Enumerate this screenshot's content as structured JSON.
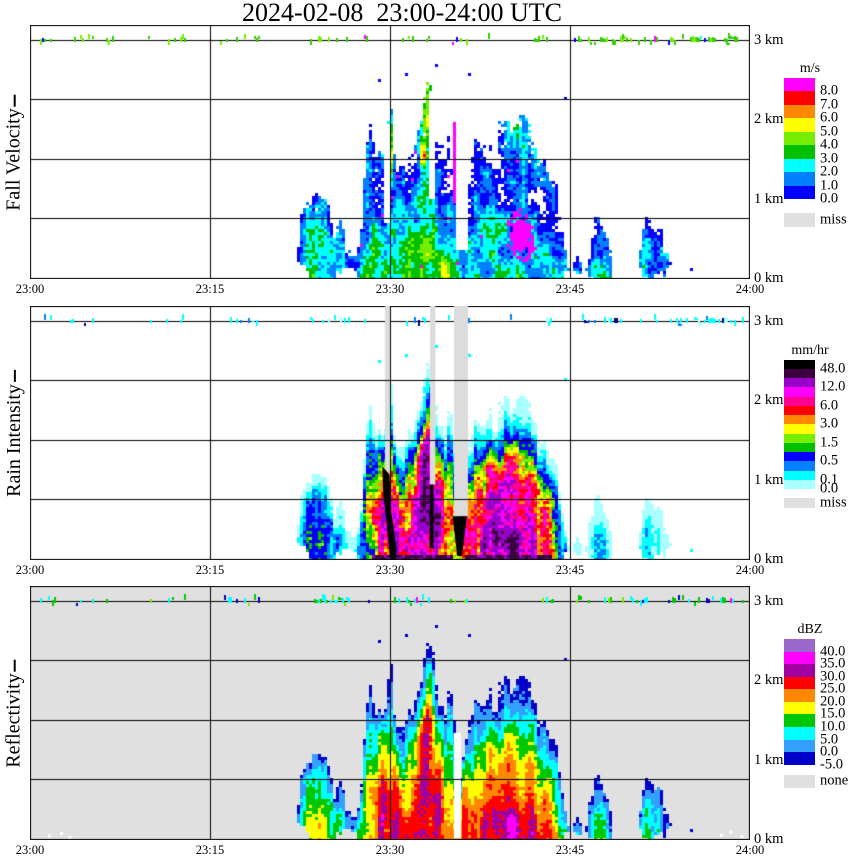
{
  "title": "2024-02-08  23:00-24:00 UTC",
  "chart_data": {
    "type": "heatmap",
    "title": "2024-02-08  23:00-24:00 UTC",
    "x_axis": {
      "tick_labels": [
        "23:00",
        "23:15",
        "23:30",
        "23:45",
        "24:00"
      ],
      "tick_minutes": [
        0,
        15,
        30,
        45,
        60
      ],
      "range_minutes": [
        0,
        60
      ]
    },
    "y_axis": {
      "tick_labels": [
        "3 km",
        "2 km",
        "1 km",
        "0 km"
      ],
      "tick_km": [
        3,
        2,
        1,
        0
      ],
      "range_km": [
        0,
        3.2
      ],
      "gridline_km": [
        3.0,
        2.25,
        1.5,
        0.75
      ]
    },
    "panels": [
      {
        "id": "fall-velocity",
        "ylabel": "Fall Velocity",
        "ylabel_suffix": "|",
        "background": "#FFFFFF",
        "legend": {
          "title": "m/s",
          "entries": [
            {
              "label": "8.0",
              "color": "#FF00FF"
            },
            {
              "label": "7.0",
              "color": "#FF0000"
            },
            {
              "label": "6.0",
              "color": "#FF8800"
            },
            {
              "label": "5.0",
              "color": "#FFFF00"
            },
            {
              "label": "4.0",
              "color": "#77EE00"
            },
            {
              "label": "3.0",
              "color": "#00C000"
            },
            {
              "label": "2.0",
              "color": "#00FFFF"
            },
            {
              "label": "1.0",
              "color": "#0080FF"
            },
            {
              "label": "0.0",
              "color": "#0000FF"
            }
          ],
          "extra": {
            "label": "miss",
            "color": "#E0E0E0"
          }
        },
        "bins": [
          0,
          1,
          2,
          3,
          4,
          5,
          6,
          7,
          8
        ]
      },
      {
        "id": "rain-intensity",
        "ylabel": "Rain Intensity",
        "ylabel_suffix": "|",
        "background": "#FFFFFF",
        "legend": {
          "title": "mm/hr",
          "entries": [
            {
              "label": "48.0",
              "color": "#000000"
            },
            {
              "label": "",
              "color": "#3C0040"
            },
            {
              "label": "12.0",
              "color": "#9900CC"
            },
            {
              "label": "",
              "color": "#FF00FF"
            },
            {
              "label": "6.0",
              "color": "#FF0090"
            },
            {
              "label": "",
              "color": "#FF0000"
            },
            {
              "label": "3.0",
              "color": "#FF8800"
            },
            {
              "label": "",
              "color": "#FFFF00"
            },
            {
              "label": "1.5",
              "color": "#77EE00"
            },
            {
              "label": "",
              "color": "#00C000"
            },
            {
              "label": "0.5",
              "color": "#0000FF"
            },
            {
              "label": "",
              "color": "#0080FF"
            },
            {
              "label": "0.1",
              "color": "#00FFFF"
            },
            {
              "label": "0.0",
              "color": "#A8FFFF"
            }
          ],
          "extra": {
            "label": "miss",
            "color": "#E0E0E0"
          }
        },
        "bins": [
          0,
          0.1,
          0.25,
          0.5,
          1.0,
          1.5,
          2.25,
          3.0,
          4.5,
          6.0,
          9.0,
          12.0,
          24.0,
          48.0
        ]
      },
      {
        "id": "reflectivity",
        "ylabel": "Reflectivity",
        "ylabel_suffix": "|",
        "background": "#E0E0E0",
        "legend": {
          "title": "dBZ",
          "entries": [
            {
              "label": "40.0",
              "color": "#9966CC"
            },
            {
              "label": "35.0",
              "color": "#FF00FF"
            },
            {
              "label": "30.0",
              "color": "#A000A0"
            },
            {
              "label": "25.0",
              "color": "#FF0000"
            },
            {
              "label": "20.0",
              "color": "#FF8800"
            },
            {
              "label": "15.0",
              "color": "#FFFF00"
            },
            {
              "label": "10.0",
              "color": "#00C800"
            },
            {
              "label": "5.0",
              "color": "#00FFFF"
            },
            {
              "label": "0.0",
              "color": "#33A0FF"
            },
            {
              "label": "-5.0",
              "color": "#0000C8"
            }
          ],
          "extra": {
            "label": "none",
            "color": "#E0E0E0"
          }
        },
        "bins": [
          -5,
          0,
          5,
          10,
          15,
          20,
          25,
          30,
          35,
          40
        ]
      }
    ],
    "echo": {
      "top_km": [
        [
          21.3,
          0.0
        ],
        [
          21.9,
          0.15
        ],
        [
          22.3,
          0.5
        ],
        [
          22.7,
          0.9
        ],
        [
          23.3,
          1.08
        ],
        [
          24.0,
          1.15
        ],
        [
          24.5,
          1.1
        ],
        [
          24.9,
          0.9
        ],
        [
          25.3,
          0.62
        ],
        [
          25.8,
          0.8
        ],
        [
          26.3,
          0.5
        ],
        [
          26.8,
          0.3
        ],
        [
          27.1,
          0.25
        ],
        [
          27.4,
          0.4
        ],
        [
          27.9,
          1.35
        ],
        [
          28.2,
          1.95
        ],
        [
          28.6,
          2.05
        ],
        [
          29.0,
          1.8
        ],
        [
          29.4,
          1.65
        ],
        [
          29.8,
          1.9
        ],
        [
          30.1,
          2.1
        ],
        [
          30.4,
          1.55
        ],
        [
          30.7,
          1.35
        ],
        [
          31.0,
          1.5
        ],
        [
          31.3,
          1.4
        ],
        [
          31.8,
          1.85
        ],
        [
          32.3,
          2.0
        ],
        [
          32.6,
          2.25
        ],
        [
          33.0,
          2.45
        ],
        [
          33.3,
          2.5
        ],
        [
          33.6,
          2.3
        ],
        [
          33.9,
          1.95
        ],
        [
          34.3,
          2.1
        ],
        [
          34.6,
          1.75
        ],
        [
          35.0,
          1.9
        ],
        [
          35.3,
          1.55
        ],
        [
          35.6,
          1.1
        ],
        [
          35.9,
          0.8
        ],
        [
          36.2,
          1.2
        ],
        [
          36.8,
          1.75
        ],
        [
          37.2,
          2.05
        ],
        [
          37.6,
          1.7
        ],
        [
          38.3,
          1.75
        ],
        [
          39.2,
          1.85
        ],
        [
          39.6,
          2.0
        ],
        [
          40.2,
          2.15
        ],
        [
          40.9,
          2.1
        ],
        [
          41.5,
          1.95
        ],
        [
          41.9,
          1.7
        ],
        [
          42.5,
          1.62
        ],
        [
          43.2,
          1.58
        ],
        [
          43.7,
          1.3
        ],
        [
          44.1,
          0.9
        ],
        [
          44.5,
          0.5
        ],
        [
          44.8,
          0.3
        ],
        [
          45.1,
          0.05
        ],
        [
          45.3,
          0.2
        ],
        [
          45.7,
          0.3
        ],
        [
          46.0,
          0.15
        ],
        [
          46.3,
          0.05
        ],
        [
          46.5,
          0.45
        ],
        [
          46.9,
          0.75
        ],
        [
          47.3,
          0.95
        ],
        [
          47.7,
          0.8
        ],
        [
          48.1,
          0.55
        ],
        [
          48.6,
          0.35
        ],
        [
          48.8,
          0.0
        ],
        [
          50.6,
          0.0
        ],
        [
          50.9,
          0.55
        ],
        [
          51.3,
          0.95
        ],
        [
          51.7,
          0.8
        ],
        [
          52.3,
          0.7
        ],
        [
          52.8,
          0.55
        ],
        [
          53.3,
          0.25
        ],
        [
          53.6,
          0.0
        ]
      ],
      "bottom_km": [
        [
          21.3,
          0.3
        ],
        [
          22.6,
          0.25
        ],
        [
          23.3,
          0.0
        ],
        [
          25.4,
          0.0
        ],
        [
          25.9,
          0.12
        ],
        [
          26.8,
          0.15
        ],
        [
          27.4,
          0.0
        ],
        [
          44.4,
          0.0
        ],
        [
          44.8,
          0.15
        ],
        [
          46.4,
          0.1
        ],
        [
          47.0,
          0.0
        ],
        [
          48.3,
          0.0
        ],
        [
          48.6,
          0.2
        ],
        [
          50.8,
          0.1
        ],
        [
          51.2,
          0.0
        ],
        [
          52.9,
          0.05
        ],
        [
          53.4,
          0.15
        ]
      ],
      "strength": [
        [
          0,
          0
        ],
        [
          21.3,
          0
        ],
        [
          21.9,
          0.55
        ],
        [
          23.0,
          0.95
        ],
        [
          24.5,
          1.0
        ],
        [
          25.4,
          0.8
        ],
        [
          26.6,
          0.6
        ],
        [
          27.4,
          0.75
        ],
        [
          28.0,
          1.2
        ],
        [
          29.0,
          1.3
        ],
        [
          30.0,
          1.35
        ],
        [
          31.0,
          1.3
        ],
        [
          32.0,
          1.45
        ],
        [
          33.0,
          1.5
        ],
        [
          34.0,
          1.45
        ],
        [
          35.0,
          1.35
        ],
        [
          35.8,
          1.1
        ],
        [
          36.4,
          1.3
        ],
        [
          37.5,
          1.45
        ],
        [
          38.5,
          1.5
        ],
        [
          42.0,
          1.5
        ],
        [
          43.0,
          1.35
        ],
        [
          44.0,
          1.1
        ],
        [
          44.8,
          0.7
        ],
        [
          45.5,
          0.3
        ],
        [
          46.4,
          0.55
        ],
        [
          47.3,
          0.75
        ],
        [
          48.2,
          0.6
        ],
        [
          48.9,
          0.4
        ],
        [
          50.7,
          0.5
        ],
        [
          51.5,
          0.75
        ],
        [
          52.4,
          0.6
        ],
        [
          53.3,
          0.3
        ],
        [
          54.0,
          0
        ],
        [
          60,
          0
        ]
      ],
      "v_strength": [
        [
          0,
          0.9
        ],
        [
          21.9,
          0.9
        ],
        [
          24.0,
          1.15
        ],
        [
          27.5,
          1.0
        ],
        [
          28.5,
          1.1
        ],
        [
          33.0,
          1.15
        ],
        [
          38.0,
          1.0
        ],
        [
          44.0,
          0.95
        ],
        [
          47.0,
          0.8
        ],
        [
          52.0,
          0.8
        ],
        [
          60,
          0.8
        ]
      ],
      "z_cores": [
        [
          24.2,
          0.45,
          0.9,
          0.45,
          4.5
        ],
        [
          29.3,
          0.5,
          0.7,
          0.5,
          7
        ],
        [
          29.35,
          0.7,
          0.22,
          0.6,
          9
        ],
        [
          30.55,
          0.6,
          0.25,
          0.5,
          8
        ],
        [
          32.5,
          0.9,
          0.8,
          0.65,
          7
        ],
        [
          33.2,
          1.85,
          0.3,
          0.5,
          12
        ],
        [
          33.0,
          1.3,
          0.45,
          0.45,
          7
        ],
        [
          34.1,
          0.6,
          0.22,
          0.55,
          10
        ],
        [
          36.15,
          0.8,
          0.22,
          0.85,
          11
        ],
        [
          38.3,
          0.7,
          0.6,
          0.6,
          5.5
        ],
        [
          40.0,
          0.55,
          0.4,
          0.6,
          10.5
        ],
        [
          41.8,
          0.8,
          0.35,
          0.7,
          10
        ],
        [
          43.0,
          0.4,
          0.5,
          0.4,
          5
        ],
        [
          47.3,
          0.35,
          0.6,
          0.3,
          3.5
        ],
        [
          51.6,
          0.4,
          0.5,
          0.35,
          4
        ]
      ],
      "v_cores": [
        [
          33.05,
          2.2,
          0.45,
          0.35,
          3.2
        ],
        [
          33.1,
          1.2,
          0.3,
          1.2,
          1.6
        ],
        [
          32.75,
          1.55,
          0.18,
          0.12,
          4.5
        ],
        [
          30.05,
          1.75,
          0.25,
          0.45,
          2.2
        ],
        [
          30.0,
          1.5,
          0.15,
          0.15,
          3.5
        ],
        [
          40.3,
          1.95,
          0.8,
          0.3,
          1.7
        ],
        [
          41.3,
          1.6,
          0.5,
          0.3,
          1.2
        ],
        [
          24.2,
          0.5,
          0.8,
          0.4,
          1.2
        ],
        [
          34.7,
          0.15,
          0.45,
          0.15,
          2.0
        ],
        [
          43.0,
          1.85,
          0.7,
          0.35,
          1.5
        ],
        [
          31.5,
          0.35,
          3.0,
          0.45,
          1.1
        ],
        [
          38.5,
          0.5,
          1.5,
          0.4,
          0.8
        ],
        [
          45.0,
          0.3,
          1.0,
          0.3,
          0.5
        ]
      ],
      "v_magenta_patch": [
        40.9,
        0.55,
        1.05,
        0.3
      ],
      "stray_dots_t_km": [
        [
          28.9,
          2.52
        ],
        [
          31.2,
          2.6
        ],
        [
          33.7,
          2.72
        ],
        [
          36.5,
          2.6
        ],
        [
          44.6,
          2.3
        ],
        [
          54.9,
          0.14
        ]
      ],
      "top_line_dot_clusters": [
        [
          0.8,
          2.2,
          0.5
        ],
        [
          3.3,
          5.3,
          0.55
        ],
        [
          6.3,
          7.0,
          0.5
        ],
        [
          9.8,
          10.3,
          0.5
        ],
        [
          11.3,
          13.2,
          0.45
        ],
        [
          15.8,
          19.2,
          0.6
        ],
        [
          23.3,
          26.6,
          0.8
        ],
        [
          27.8,
          28.3,
          0.5
        ],
        [
          30.3,
          33.6,
          0.5
        ],
        [
          34.9,
          36.6,
          0.55
        ],
        [
          37.8,
          38.3,
          0.5
        ],
        [
          39.8,
          40.3,
          0.5
        ],
        [
          41.9,
          43.6,
          0.5
        ],
        [
          45.3,
          52.3,
          0.65
        ],
        [
          53.2,
          59.5,
          0.7
        ]
      ],
      "miss_columns_minutes": [
        [
          29.58,
          30.08,
          1.05
        ],
        [
          33.33,
          33.78,
          0.95
        ],
        [
          35.33,
          36.5,
          0.55
        ]
      ]
    }
  }
}
